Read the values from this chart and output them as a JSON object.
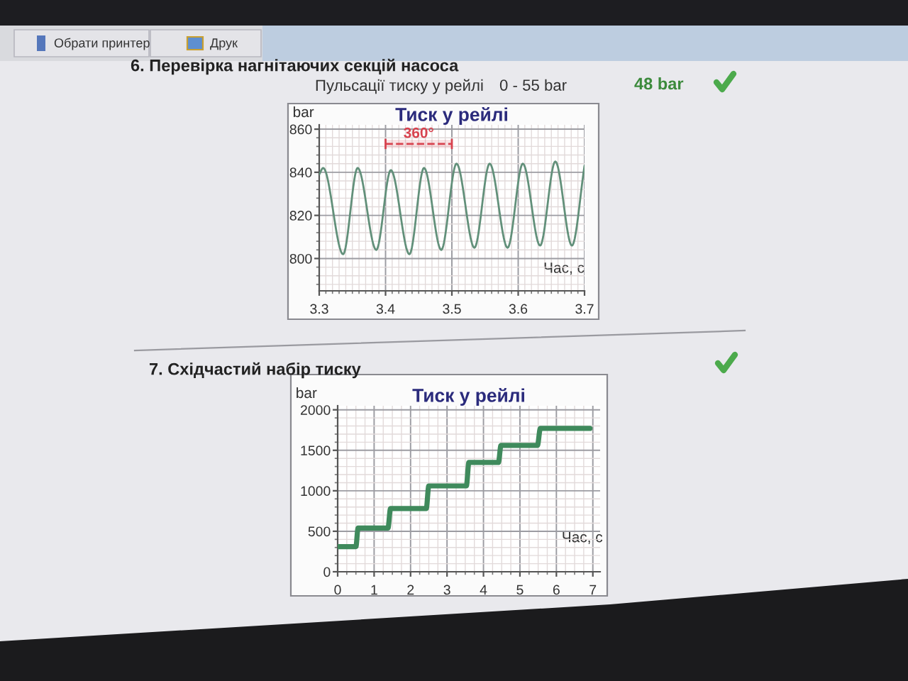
{
  "chart_data": [
    {
      "type": "line",
      "title": "Тиск у рейлі",
      "ylabel": "bar",
      "xlabel": "Час, с",
      "color": "#62907a",
      "x": [
        3.3,
        3.306,
        3.336,
        3.358,
        3.386,
        3.408,
        3.436,
        3.458,
        3.484,
        3.507,
        3.534,
        3.557,
        3.584,
        3.607,
        3.633,
        3.656,
        3.681,
        3.7
      ],
      "values": [
        839,
        842,
        802,
        842,
        804,
        841,
        802,
        842,
        804,
        844,
        805,
        844,
        805,
        844,
        806,
        845,
        806,
        843
      ],
      "xlim": [
        3.3,
        3.7
      ],
      "xticks": [
        3.3,
        3.4,
        3.5,
        3.6,
        3.7
      ],
      "ylim": [
        785,
        862
      ],
      "yticks": [
        800,
        820,
        840,
        860
      ],
      "grid": true,
      "bands": [
        {
          "axis": "x",
          "from": 3.4,
          "to": 3.5,
          "label": "360°",
          "color": "#d8434f"
        }
      ],
      "annotations": [
        "Обрати принтер",
        "Друк",
        "6. Перевірка нагнітаючих секцій насоса",
        "Пульсації тиску у рейлі",
        "0 - 55 bar",
        "48 bar"
      ]
    },
    {
      "type": "line",
      "title": "Тиск у рейлі",
      "ylabel": "bar",
      "xlabel": "Час, с",
      "color": "#3f8a5c",
      "x": [
        0,
        0.5,
        0.56,
        1.38,
        1.45,
        2.43,
        2.5,
        3.53,
        3.6,
        4.41,
        4.48,
        5.48,
        5.56,
        6.92
      ],
      "values": [
        310,
        310,
        540,
        540,
        780,
        780,
        1060,
        1060,
        1350,
        1350,
        1560,
        1560,
        1770,
        1770
      ],
      "xlim": [
        0,
        7.2
      ],
      "xticks": [
        0,
        1,
        2,
        3,
        4,
        5,
        6,
        7
      ],
      "ylim": [
        0,
        2050
      ],
      "yticks": [
        0,
        500,
        1000,
        1500,
        2000
      ],
      "grid": true,
      "annotations": [
        "7. Східчастий набір тиску"
      ]
    }
  ]
}
